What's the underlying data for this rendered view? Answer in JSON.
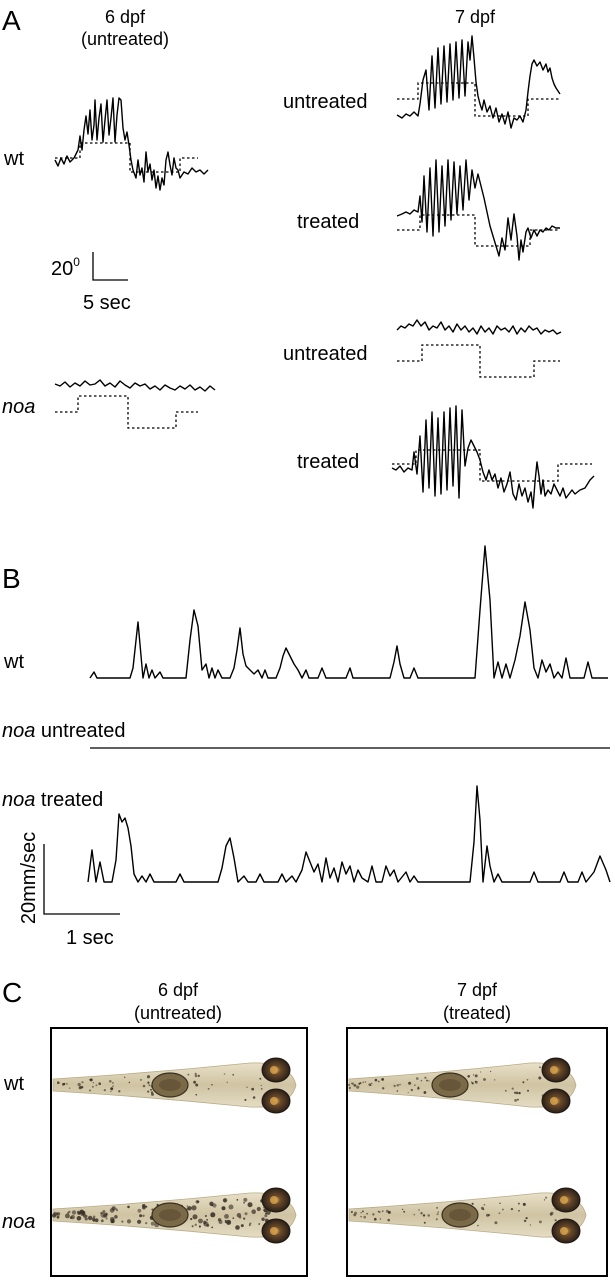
{
  "panels": {
    "a": "A",
    "b": "B",
    "c": "C"
  },
  "panel_a": {
    "col1_header_line1": "6 dpf",
    "col1_header_line2": "(untreated)",
    "col2_header": "7 dpf",
    "row_wt": "wt",
    "row_noa": "noa",
    "cond_untreated_1": "untreated",
    "cond_treated_1": "treated",
    "cond_untreated_2": "untreated",
    "cond_treated_2": "treated",
    "scale_y": "20",
    "scale_y_sup": "0",
    "scale_x": "5 sec"
  },
  "panel_b": {
    "row_wt": "wt",
    "row_noa_untreated_italic": "noa",
    "row_noa_untreated_rest": " untreated",
    "row_noa_treated_italic": "noa",
    "row_noa_treated_rest": " treated",
    "scale_y": "20mm/sec",
    "scale_x": "1 sec"
  },
  "panel_c": {
    "col1_header_line1": "6 dpf",
    "col1_header_line2": "(untreated)",
    "col2_header_line1": "7 dpf",
    "col2_header_line2": "(treated)",
    "row_wt": "wt",
    "row_noa": "noa"
  },
  "colors": {
    "larva_body": "#d9cfb4",
    "larva_pigment": "#3a3228",
    "eye": "#4a3826",
    "frame": "#000000"
  }
}
